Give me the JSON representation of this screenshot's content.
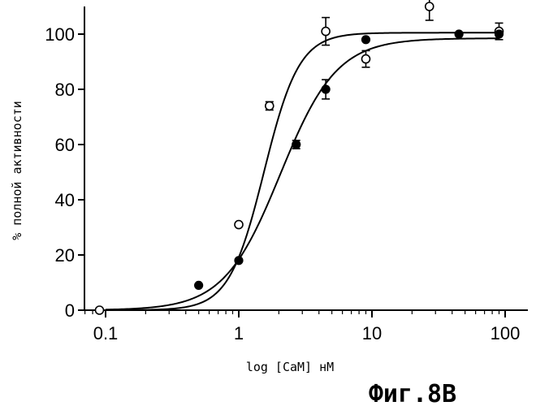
{
  "chart_data": {
    "type": "scatter",
    "x_scale": "log",
    "xlim": [
      0.065,
      110
    ],
    "ylim": [
      0,
      110
    ],
    "x_ticks": [
      {
        "value": 0.1,
        "label": "0.1"
      },
      {
        "value": 1,
        "label": "1"
      },
      {
        "value": 10,
        "label": "10"
      },
      {
        "value": 100,
        "label": "100"
      }
    ],
    "y_ticks": [
      {
        "value": 0,
        "label": "0"
      },
      {
        "value": 20,
        "label": "20"
      },
      {
        "value": 40,
        "label": "40"
      },
      {
        "value": 60,
        "label": "60"
      },
      {
        "value": 80,
        "label": "80"
      },
      {
        "value": 100,
        "label": "100"
      }
    ],
    "xlabel": "log [CaM] нМ",
    "ylabel": "% полной активности",
    "grid": false,
    "legend": "none",
    "series": [
      {
        "marker": "open-circle",
        "x": [
          0.09,
          1.0,
          1.7,
          4.5,
          9.0,
          27,
          90
        ],
        "y": [
          0,
          31,
          74,
          101,
          91,
          110,
          101
        ],
        "yerr": [
          0,
          0,
          1.5,
          5,
          3,
          5,
          3
        ]
      },
      {
        "marker": "filled-circle",
        "x": [
          0.5,
          1.0,
          2.7,
          4.5,
          9.0,
          45,
          90
        ],
        "y": [
          9,
          18,
          60,
          80,
          98,
          100,
          100
        ],
        "yerr": [
          0,
          0,
          1.5,
          3.5,
          0,
          0,
          0
        ]
      }
    ],
    "fits": [
      {
        "for_series": 0,
        "top": 100.5,
        "ec50": 1.55,
        "hill": 3.3
      },
      {
        "for_series": 1,
        "top": 98.5,
        "ec50": 2.05,
        "hill": 2.05
      }
    ]
  },
  "caption": "Фиг.8В"
}
